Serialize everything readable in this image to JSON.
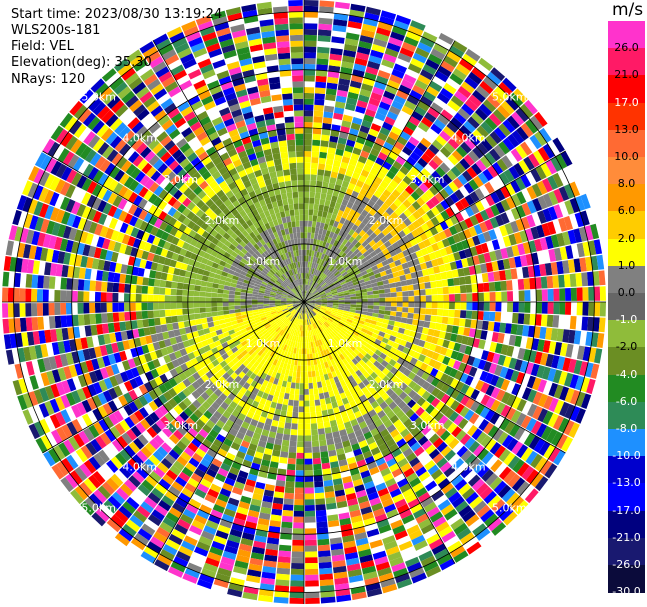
{
  "header": {
    "start_time": "Start time: 2023/08/30 13:19:24",
    "instrument": "WLS200s-181",
    "field": "Field: VEL",
    "elevation": "Elevation(deg): 35.30",
    "nrays": "NRays: 120"
  },
  "colorbar": {
    "unit": "m/s",
    "labels": [
      "26.0",
      "21.0",
      "17.0",
      "13.0",
      "10.0",
      "8.0",
      "6.0",
      "2.0",
      "1.0",
      "0.0",
      "-1.0",
      "-2.0",
      "-4.0",
      "-6.0",
      "-8.0",
      "-10.0",
      "-13.0",
      "-17.0",
      "-21.0",
      "-26.0",
      "-30.0"
    ],
    "colors": [
      "#ff33cc",
      "#ff1a66",
      "#ff0000",
      "#ff3300",
      "#ff6a33",
      "#ff8c3a",
      "#ff9900",
      "#ffcc00",
      "#ffff00",
      "#808080",
      "#666666",
      "#8fbc3a",
      "#6b8e23",
      "#228b22",
      "#2e8b57",
      "#1e90ff",
      "#0000cd",
      "#0000ff",
      "#000080",
      "#191970",
      "#0b0b3b"
    ]
  },
  "chart_data": {
    "type": "heatmap",
    "title": "",
    "field": "VEL",
    "units": "m/s",
    "elevation_deg": 35.3,
    "n_rays": 120,
    "colorbar_range": [
      -30,
      26
    ],
    "range_rings_km": [
      1.0,
      2.0,
      3.0,
      4.0,
      5.0
    ],
    "range_ring_labels": [
      "1.0km",
      "2.0km",
      "3.0km",
      "4.0km",
      "5.0km"
    ],
    "radial_lines_deg": [
      0,
      30,
      60,
      90,
      120,
      150,
      180,
      210,
      240,
      270,
      300,
      330
    ],
    "coherent_region_summary": [
      {
        "range_km": [
          0.0,
          1.0
        ],
        "sector": "north",
        "velocity_m_s": -1.0
      },
      {
        "range_km": [
          0.0,
          1.5
        ],
        "sector": "south",
        "velocity_m_s": 2.0
      },
      {
        "range_km": [
          1.0,
          2.5
        ],
        "sector": "north",
        "velocity_m_s": -2.0
      },
      {
        "range_km": [
          1.5,
          2.5
        ],
        "sector": "north-east ring",
        "velocity_m_s": 3.0
      },
      {
        "range_km": [
          2.5,
          5.3
        ],
        "sector": "all",
        "velocity_m_s": "noise"
      }
    ]
  }
}
